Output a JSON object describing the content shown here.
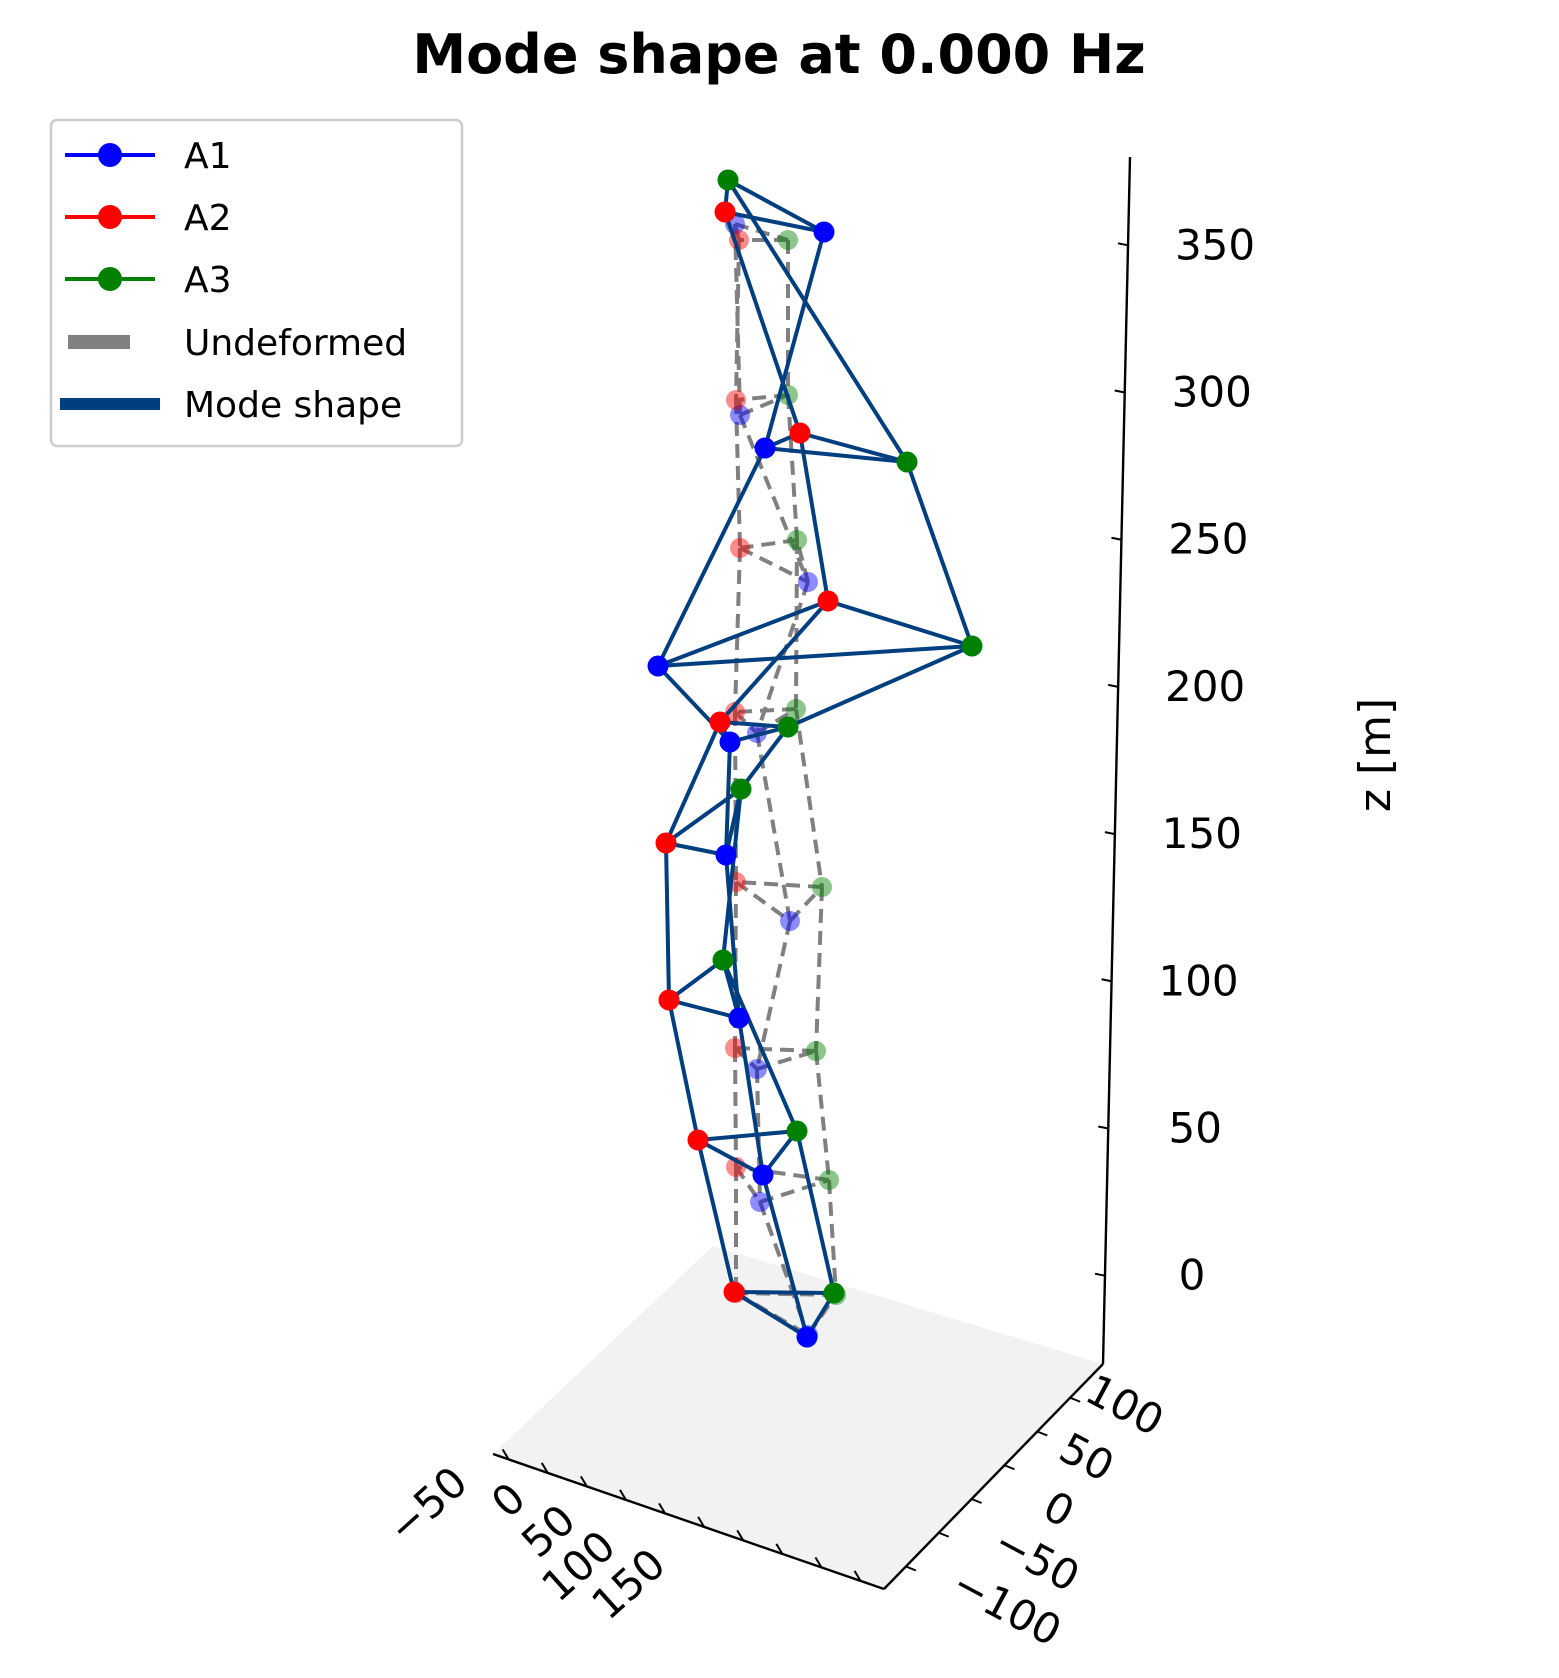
{
  "chart_data": {
    "type": "scatter",
    "projection": "3d",
    "title": "Mode shape at 0.000 Hz",
    "xlabel": "",
    "ylabel": "",
    "zlabel": "z [m]",
    "x_ticks": [
      "−50",
      "0",
      "50",
      "100",
      "150"
    ],
    "y_ticks": [
      "−100",
      "−50",
      "0",
      "50",
      "100"
    ],
    "z_ticks": [
      "0",
      "50",
      "100",
      "150",
      "200",
      "250",
      "300",
      "350"
    ],
    "zlim": [
      -30,
      380
    ],
    "legend": {
      "position": "upper-left",
      "entries": [
        {
          "label": "A1",
          "kind": "marker-line",
          "color": "#0000ff"
        },
        {
          "label": "A2",
          "kind": "marker-line",
          "color": "#ff0000"
        },
        {
          "label": "A3",
          "kind": "marker-line",
          "color": "#008000"
        },
        {
          "label": "Undeformed",
          "kind": "dashed",
          "color": "#808080"
        },
        {
          "label": "Mode shape",
          "kind": "solid",
          "color": "#003f7f"
        }
      ]
    },
    "colors": {
      "A1": "#0000ff",
      "A2": "#ff0000",
      "A3": "#008000",
      "undeformed": "#808080",
      "mode_shape": "#003f7f",
      "floor": "#f2f2f2"
    }
  }
}
